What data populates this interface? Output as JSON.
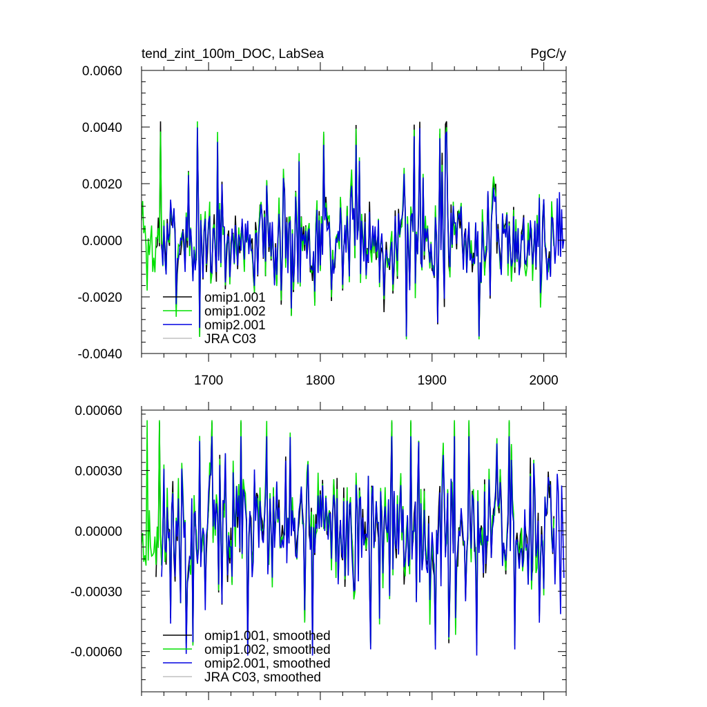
{
  "chart_data": [
    {
      "type": "line",
      "title": "tend_zint_100m_DOC, LabSea",
      "units": "PgC/y",
      "xlim": [
        1640,
        2020
      ],
      "ylim": [
        -0.004,
        0.006
      ],
      "yticks": [
        "0.0060",
        "0.0040",
        "0.0020",
        "0.0000",
        "-0.0020",
        "-0.0040"
      ],
      "xticks": [
        "1700",
        "1800",
        "1900",
        "2000"
      ],
      "legend_position": "bottom-left",
      "series": [
        {
          "name": "omip1.001",
          "color": "#000000",
          "x_start": 1653,
          "x_end": 2009,
          "amplitude": 0.0013,
          "peak_max": 0.0042,
          "trough_min": -0.0034
        },
        {
          "name": "omip1.002",
          "color": "#00e000",
          "x_start": 1638,
          "x_end": 2009,
          "amplitude": 0.0013,
          "peak_max": 0.0042,
          "trough_min": -0.0035
        },
        {
          "name": "omip2.001",
          "color": "#0000e0",
          "x_start": 1658,
          "x_end": 2018,
          "amplitude": 0.0012,
          "peak_max": 0.0041,
          "trough_min": -0.0034
        },
        {
          "name": "JRA C03",
          "color": "#c0c0c0",
          "x_start": null,
          "x_end": null
        }
      ]
    },
    {
      "type": "line",
      "title": "",
      "units": "",
      "xlim": [
        1640,
        2020
      ],
      "ylim": [
        -0.0008,
        0.0006
      ],
      "yticks": [
        "0.00060",
        "0.00030",
        "0.00000",
        "-0.00030",
        "-0.00060"
      ],
      "legend_position": "bottom-left",
      "series": [
        {
          "name": "omip1.001, smoothed",
          "color": "#000000",
          "x_start": 1653,
          "x_end": 2009,
          "amplitude": 0.00022,
          "peak_max": 0.00054,
          "trough_min": -0.00056
        },
        {
          "name": "omip1.002, smoothed",
          "color": "#00e000",
          "x_start": 1638,
          "x_end": 2009,
          "amplitude": 0.00023,
          "peak_max": 0.00055,
          "trough_min": -0.00057
        },
        {
          "name": "omip2.001, smoothed",
          "color": "#0000e0",
          "x_start": 1658,
          "x_end": 2018,
          "amplitude": 0.00022,
          "peak_max": 0.00047,
          "trough_min": -0.00062
        },
        {
          "name": "JRA C03, smoothed",
          "color": "#c0c0c0",
          "x_start": null,
          "x_end": null
        }
      ]
    }
  ]
}
